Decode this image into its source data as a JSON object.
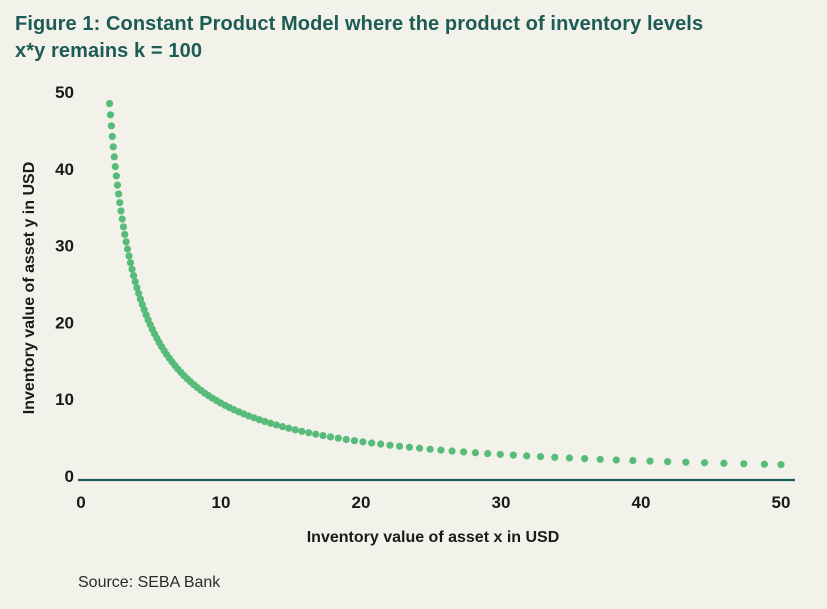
{
  "title": {
    "line1": "Figure 1: Constant Product Model where the product of inventory levels",
    "line2": "x*y remains k = 100"
  },
  "source": "Source: SEBA Bank",
  "colors": {
    "background": "#f2f1ea",
    "title_teal": "#1d5b55",
    "axis_line_teal": "#1d5b55",
    "dot_green": "#57bc7a",
    "text_dark": "#1a1a18"
  },
  "chart_data": {
    "type": "scatter",
    "title": "Constant Product Model where the product of inventory levels x*y remains k = 100",
    "relation": "y = k / x",
    "k": 100,
    "x_start": 2.04,
    "x_end": 50,
    "sampling": "geometric",
    "sampling_ratio": 1.031,
    "xlabel": "Inventory value of asset x in USD",
    "ylabel": "Inventory value of asset y in USD",
    "xlim": [
      0,
      50
    ],
    "ylim": [
      0,
      50
    ],
    "x_ticks": [
      0,
      10,
      20,
      30,
      40,
      50
    ],
    "y_ticks": [
      0,
      10,
      20,
      30,
      40,
      50
    ],
    "grid": false,
    "legend": "none",
    "points_preview": [
      [
        2.04,
        49.0
      ],
      [
        2.5,
        40.0
      ],
      [
        3.3,
        30.3
      ],
      [
        5.0,
        20.0
      ],
      [
        6.7,
        14.9
      ],
      [
        10.0,
        10.0
      ],
      [
        14.3,
        7.0
      ],
      [
        20.0,
        5.0
      ],
      [
        25.0,
        4.0
      ],
      [
        33.3,
        3.0
      ],
      [
        40.0,
        2.5
      ],
      [
        45.0,
        2.2
      ],
      [
        50.0,
        2.0
      ]
    ]
  }
}
